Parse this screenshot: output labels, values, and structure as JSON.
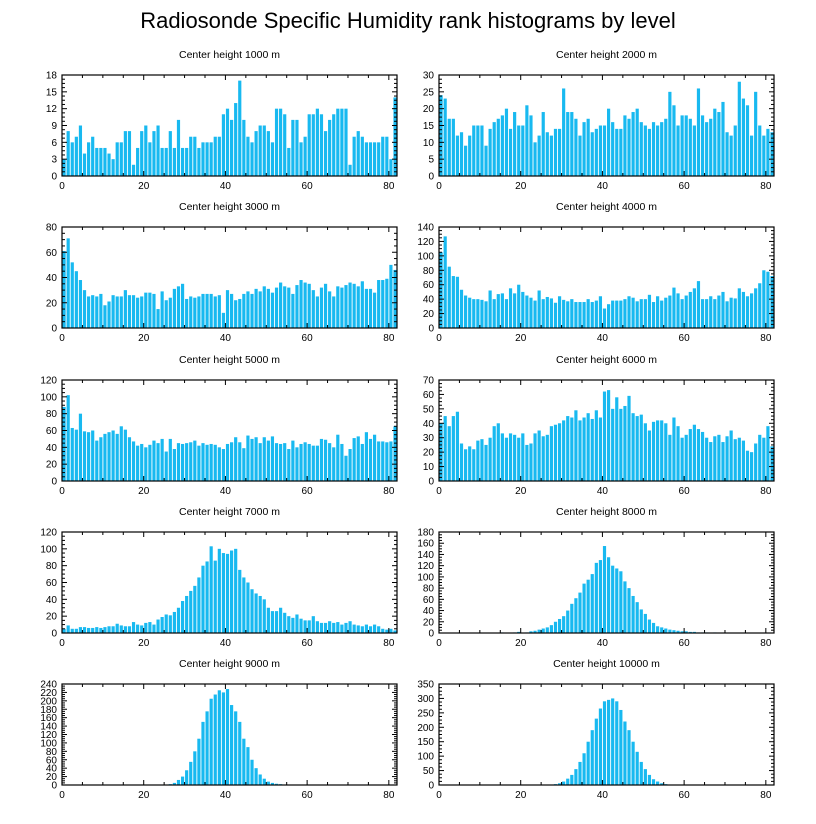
{
  "title": "Radiosonde Specific Humidity rank histograms by level",
  "colors": {
    "bar": "#18b9f0",
    "axis": "#000000"
  },
  "chart_data": [
    {
      "type": "bar",
      "title": "Center height 1000 m",
      "xlim": [
        0,
        82
      ],
      "ylim": [
        0,
        18
      ],
      "xticks": [
        0,
        20,
        40,
        60,
        80
      ],
      "yticks": [
        0,
        3,
        6,
        9,
        12,
        15,
        18
      ],
      "values": [
        3,
        8,
        6,
        7,
        9,
        4,
        6,
        7,
        5,
        5,
        5,
        4,
        3,
        6,
        6,
        8,
        8,
        2,
        5,
        8,
        9,
        6,
        8,
        9,
        5,
        5,
        8,
        5,
        10,
        5,
        5,
        7,
        7,
        5,
        6,
        6,
        6,
        7,
        7,
        11,
        12,
        10,
        13,
        17,
        10,
        7,
        6,
        8,
        9,
        9,
        8,
        6,
        12,
        12,
        11,
        5,
        10,
        10,
        6,
        7,
        11,
        11,
        12,
        11,
        8,
        10,
        11,
        12,
        12,
        12,
        2,
        7,
        8,
        7,
        6,
        6,
        6,
        6,
        7,
        7,
        3,
        14
      ]
    },
    {
      "type": "bar",
      "title": "Center height 2000 m",
      "xlim": [
        0,
        82
      ],
      "ylim": [
        0,
        30
      ],
      "xticks": [
        0,
        20,
        40,
        60,
        80
      ],
      "yticks": [
        0,
        5,
        10,
        15,
        20,
        25,
        30
      ],
      "values": [
        24,
        23,
        17,
        17,
        12,
        13,
        9,
        12,
        15,
        15,
        15,
        9,
        14,
        16,
        17,
        18,
        20,
        14,
        19,
        15,
        15,
        21,
        18,
        10,
        12,
        19,
        13,
        12,
        14,
        14,
        26,
        19,
        19,
        17,
        12,
        16,
        17,
        13,
        14,
        15,
        15,
        20,
        16,
        14,
        14,
        18,
        17,
        19,
        20,
        16,
        15,
        14,
        16,
        15,
        16,
        17,
        25,
        21,
        15,
        18,
        18,
        17,
        15,
        26,
        18,
        16,
        17,
        20,
        19,
        22,
        13,
        12,
        15,
        28,
        23,
        21,
        12,
        25,
        15,
        12,
        14,
        13
      ]
    },
    {
      "type": "bar",
      "title": "Center height 3000 m",
      "xlim": [
        0,
        82
      ],
      "ylim": [
        0,
        80
      ],
      "xticks": [
        0,
        20,
        40,
        60,
        80
      ],
      "yticks": [
        0,
        20,
        40,
        60,
        80
      ],
      "values": [
        61,
        71,
        52,
        45,
        38,
        30,
        25,
        26,
        25,
        27,
        18,
        21,
        26,
        25,
        25,
        30,
        26,
        26,
        24,
        25,
        28,
        28,
        27,
        15,
        29,
        22,
        24,
        31,
        33,
        35,
        23,
        25,
        24,
        25,
        27,
        27,
        27,
        25,
        26,
        12,
        30,
        27,
        22,
        23,
        27,
        29,
        27,
        31,
        29,
        33,
        31,
        28,
        32,
        36,
        33,
        32,
        27,
        34,
        38,
        36,
        35,
        30,
        25,
        32,
        35,
        29,
        25,
        33,
        32,
        34,
        36,
        35,
        33,
        37,
        31,
        31,
        28,
        38,
        38,
        39,
        50,
        46
      ]
    },
    {
      "type": "bar",
      "title": "Center height 4000 m",
      "xlim": [
        0,
        82
      ],
      "ylim": [
        0,
        140
      ],
      "xticks": [
        0,
        20,
        40,
        60,
        80
      ],
      "yticks": [
        0,
        20,
        40,
        60,
        80,
        100,
        120,
        140
      ],
      "values": [
        105,
        127,
        85,
        72,
        71,
        53,
        45,
        42,
        40,
        40,
        39,
        37,
        52,
        40,
        47,
        48,
        40,
        55,
        48,
        60,
        50,
        45,
        42,
        38,
        52,
        40,
        43,
        41,
        35,
        44,
        39,
        37,
        40,
        36,
        36,
        36,
        40,
        36,
        38,
        44,
        27,
        33,
        38,
        38,
        38,
        40,
        44,
        42,
        37,
        40,
        40,
        46,
        36,
        44,
        38,
        42,
        45,
        56,
        48,
        40,
        45,
        50,
        55,
        65,
        40,
        40,
        44,
        40,
        45,
        50,
        37,
        42,
        41,
        55,
        50,
        44,
        48,
        55,
        62,
        80,
        78,
        72
      ]
    },
    {
      "type": "bar",
      "title": "Center height 5000 m",
      "xlim": [
        0,
        82
      ],
      "ylim": [
        0,
        120
      ],
      "xticks": [
        0,
        20,
        40,
        60,
        80
      ],
      "yticks": [
        0,
        20,
        40,
        60,
        80,
        100,
        120
      ],
      "values": [
        88,
        102,
        63,
        61,
        80,
        59,
        58,
        60,
        48,
        52,
        56,
        58,
        60,
        56,
        65,
        61,
        52,
        47,
        42,
        44,
        40,
        43,
        48,
        45,
        50,
        35,
        50,
        38,
        45,
        44,
        45,
        46,
        48,
        42,
        45,
        43,
        44,
        43,
        40,
        38,
        44,
        46,
        52,
        46,
        39,
        54,
        50,
        52,
        45,
        52,
        48,
        53,
        45,
        44,
        45,
        38,
        48,
        40,
        44,
        46,
        44,
        42,
        42,
        50,
        49,
        45,
        40,
        55,
        44,
        30,
        38,
        51,
        53,
        44,
        58,
        50,
        55,
        47,
        47,
        46,
        47,
        65
      ]
    },
    {
      "type": "bar",
      "title": "Center height 6000 m",
      "xlim": [
        0,
        82
      ],
      "ylim": [
        0,
        70
      ],
      "xticks": [
        0,
        20,
        40,
        60,
        80
      ],
      "yticks": [
        0,
        10,
        20,
        30,
        40,
        50,
        60,
        70
      ],
      "values": [
        40,
        45,
        38,
        45,
        48,
        26,
        22,
        24,
        22,
        28,
        29,
        25,
        30,
        38,
        40,
        33,
        30,
        33,
        32,
        30,
        33,
        25,
        26,
        33,
        35,
        31,
        32,
        38,
        39,
        40,
        42,
        45,
        44,
        49,
        42,
        44,
        47,
        43,
        49,
        44,
        62,
        63,
        50,
        58,
        50,
        52,
        59,
        47,
        45,
        46,
        40,
        35,
        41,
        42,
        42,
        40,
        32,
        44,
        38,
        30,
        32,
        36,
        39,
        36,
        34,
        30,
        27,
        31,
        32,
        27,
        31,
        35,
        29,
        30,
        28,
        21,
        20,
        26,
        32,
        30,
        38,
        24
      ]
    },
    {
      "type": "bar",
      "title": "Center height 7000 m",
      "xlim": [
        0,
        82
      ],
      "ylim": [
        0,
        120
      ],
      "xticks": [
        0,
        20,
        40,
        60,
        80
      ],
      "yticks": [
        0,
        20,
        40,
        60,
        80,
        100,
        120
      ],
      "values": [
        5,
        9,
        5,
        5,
        7,
        7,
        6,
        6,
        7,
        6,
        7,
        8,
        8,
        11,
        9,
        8,
        8,
        13,
        10,
        9,
        12,
        13,
        10,
        16,
        19,
        22,
        21,
        25,
        30,
        38,
        44,
        50,
        56,
        66,
        80,
        85,
        103,
        86,
        100,
        95,
        94,
        98,
        100,
        75,
        66,
        60,
        52,
        47,
        44,
        40,
        30,
        26,
        26,
        30,
        24,
        20,
        18,
        22,
        17,
        15,
        15,
        20,
        14,
        12,
        12,
        14,
        12,
        13,
        10,
        12,
        14,
        10,
        9,
        8,
        10,
        8,
        10,
        8,
        5,
        4,
        5,
        3
      ]
    },
    {
      "type": "bar",
      "title": "Center height 8000 m",
      "xlim": [
        0,
        82
      ],
      "ylim": [
        0,
        180
      ],
      "xticks": [
        0,
        20,
        40,
        60,
        80
      ],
      "yticks": [
        0,
        20,
        40,
        60,
        80,
        100,
        120,
        140,
        160,
        180
      ],
      "values": [
        0,
        0,
        0,
        0,
        0,
        0,
        0,
        0,
        0,
        0,
        0,
        0,
        0,
        0,
        0,
        1,
        0,
        0,
        1,
        2,
        0,
        1,
        3,
        4,
        6,
        8,
        10,
        14,
        20,
        25,
        30,
        40,
        52,
        62,
        72,
        88,
        95,
        105,
        125,
        130,
        155,
        135,
        120,
        115,
        110,
        92,
        80,
        66,
        55,
        42,
        34,
        24,
        18,
        12,
        10,
        8,
        6,
        5,
        4,
        3,
        3,
        2,
        2,
        1,
        1,
        1,
        0,
        1,
        0,
        0,
        0,
        0,
        0,
        0,
        0,
        0,
        0,
        0,
        0,
        0,
        0,
        0
      ]
    },
    {
      "type": "bar",
      "title": "Center height 9000 m",
      "xlim": [
        0,
        82
      ],
      "ylim": [
        0,
        240
      ],
      "xticks": [
        0,
        20,
        40,
        60,
        80
      ],
      "yticks": [
        0,
        20,
        40,
        60,
        80,
        100,
        120,
        140,
        160,
        180,
        200,
        220,
        240
      ],
      "values": [
        0,
        0,
        0,
        0,
        0,
        0,
        0,
        0,
        0,
        0,
        0,
        0,
        0,
        0,
        0,
        0,
        0,
        0,
        0,
        0,
        0,
        0,
        0,
        0,
        0,
        1,
        2,
        5,
        12,
        20,
        35,
        55,
        80,
        110,
        150,
        175,
        205,
        215,
        225,
        220,
        228,
        190,
        175,
        150,
        110,
        90,
        60,
        40,
        25,
        15,
        8,
        5,
        3,
        2,
        1,
        1,
        0,
        0,
        0,
        0,
        0,
        0,
        0,
        0,
        0,
        0,
        0,
        0,
        0,
        0,
        0,
        0,
        0,
        0,
        0,
        0,
        0,
        0,
        0,
        0,
        0,
        0
      ]
    },
    {
      "type": "bar",
      "title": "Center height 10000 m",
      "xlim": [
        0,
        82
      ],
      "ylim": [
        0,
        350
      ],
      "xticks": [
        0,
        20,
        40,
        60,
        80
      ],
      "yticks": [
        0,
        50,
        100,
        150,
        200,
        250,
        300,
        350
      ],
      "values": [
        0,
        0,
        0,
        0,
        0,
        0,
        0,
        0,
        0,
        0,
        0,
        0,
        0,
        0,
        0,
        0,
        0,
        0,
        0,
        0,
        0,
        0,
        0,
        0,
        0,
        0,
        0,
        1,
        3,
        6,
        12,
        22,
        35,
        55,
        80,
        110,
        150,
        190,
        230,
        265,
        290,
        295,
        300,
        290,
        260,
        220,
        190,
        150,
        115,
        80,
        55,
        35,
        20,
        12,
        6,
        3,
        1,
        0,
        0,
        0,
        0,
        0,
        0,
        0,
        0,
        0,
        0,
        0,
        0,
        0,
        0,
        0,
        0,
        0,
        0,
        0,
        0,
        0,
        0,
        0,
        0,
        0
      ]
    }
  ]
}
